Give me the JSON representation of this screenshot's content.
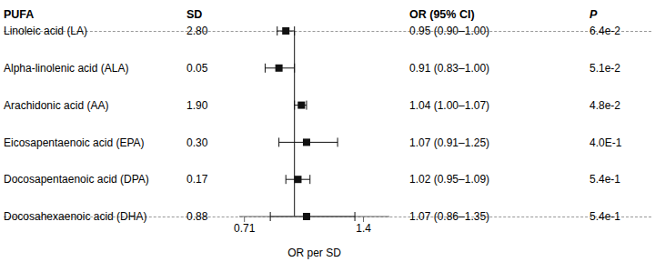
{
  "chart_data": {
    "type": "forest",
    "categories": [
      "Linoleic acid (LA)",
      "Alpha-linolenic acid (ALA)",
      "Arachidonic acid (AA)",
      "Eicosapentaenoic acid (EPA)",
      "Docosapentaenoic acid (DPA)",
      "Docosahexaenoic acid (DHA)"
    ],
    "values": [
      0.95,
      0.91,
      1.04,
      1.07,
      1.02,
      1.07
    ],
    "ci_lo": [
      0.9,
      0.83,
      1.0,
      0.91,
      0.95,
      0.86
    ],
    "ci_hi": [
      1.0,
      1.0,
      1.07,
      1.25,
      1.09,
      1.35
    ],
    "sd": [
      "2.80",
      "0.05",
      "1.90",
      "0.30",
      "0.17",
      "0.88"
    ],
    "or_text": [
      "0.95 (0.90–1.00)",
      "0.91 (0.83–1.00)",
      "1.04 (1.00–1.07)",
      "1.07 (0.91–1.25)",
      "1.02 (0.95–1.09)",
      "1.07 (0.86–1.35)"
    ],
    "p_text": [
      "6.4e-2",
      "5.1e-2",
      "4.8e-2",
      "4.0E-1",
      "5.4e-1",
      "5.4e-1"
    ],
    "column_headers": [
      "PUFA",
      "SD",
      "OR (95% CI)",
      "P"
    ],
    "xlabel": "OR per SD",
    "xlim": [
      0.68,
      1.55
    ],
    "xticks": [
      0.71,
      1.4
    ],
    "null_value": 1.0,
    "color": "#111111"
  }
}
